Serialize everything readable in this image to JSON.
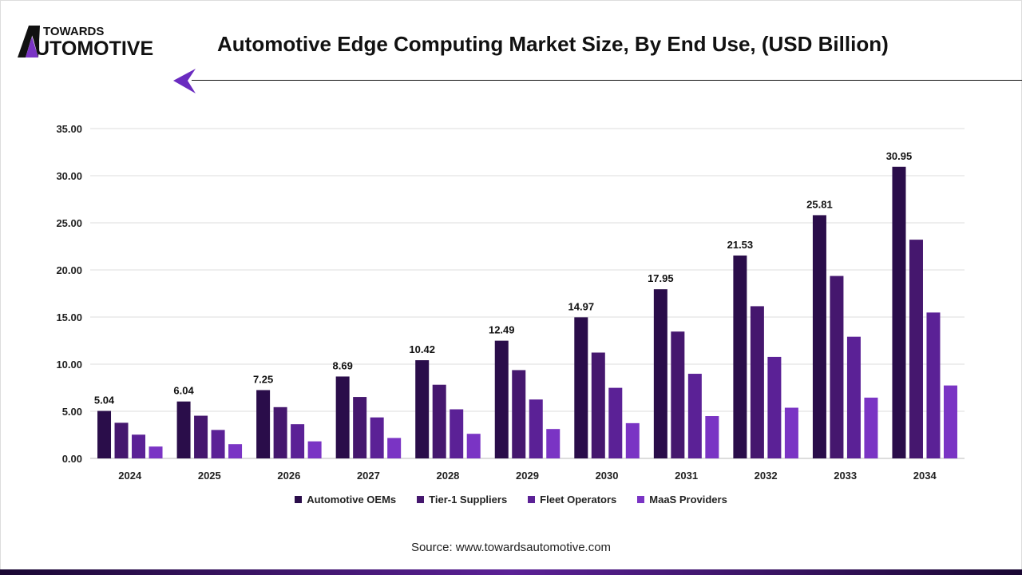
{
  "brand": {
    "line1": "TOWARDS",
    "line2": "AUTOMOTIVE"
  },
  "source": "Source: www.towardsautomotive.com",
  "chart_data": {
    "type": "bar",
    "title": "Automotive Edge Computing Market Size, By End Use, (USD Billion)",
    "categories": [
      "2024",
      "2025",
      "2026",
      "2027",
      "2028",
      "2029",
      "2030",
      "2031",
      "2032",
      "2033",
      "2034"
    ],
    "ylim": [
      0,
      35
    ],
    "yticks": [
      "0.00",
      "5.00",
      "10.00",
      "15.00",
      "20.00",
      "25.00",
      "30.00",
      "35.00"
    ],
    "grid": true,
    "legend_position": "bottom",
    "series": [
      {
        "name": "Automotive OEMs",
        "color": "#2a0d4a",
        "values": [
          5.04,
          6.04,
          7.25,
          8.69,
          10.42,
          12.49,
          14.97,
          17.95,
          21.53,
          25.81,
          30.95
        ],
        "labels": [
          "5.04",
          "6.04",
          "7.25",
          "8.69",
          "10.42",
          "12.49",
          "14.97",
          "17.95",
          "21.53",
          "25.81",
          "30.95"
        ]
      },
      {
        "name": "Tier-1 Suppliers",
        "color": "#45176e",
        "values": [
          3.78,
          4.53,
          5.44,
          6.52,
          7.82,
          9.37,
          11.23,
          13.46,
          16.15,
          19.36,
          23.21
        ]
      },
      {
        "name": "Fleet Operators",
        "color": "#5b2196",
        "values": [
          2.52,
          3.02,
          3.63,
          4.35,
          5.21,
          6.25,
          7.49,
          8.98,
          10.77,
          12.91,
          15.48
        ]
      },
      {
        "name": "MaaS Providers",
        "color": "#7a34c4",
        "values": [
          1.26,
          1.51,
          1.81,
          2.17,
          2.61,
          3.12,
          3.74,
          4.49,
          5.38,
          6.45,
          7.74
        ]
      }
    ]
  }
}
